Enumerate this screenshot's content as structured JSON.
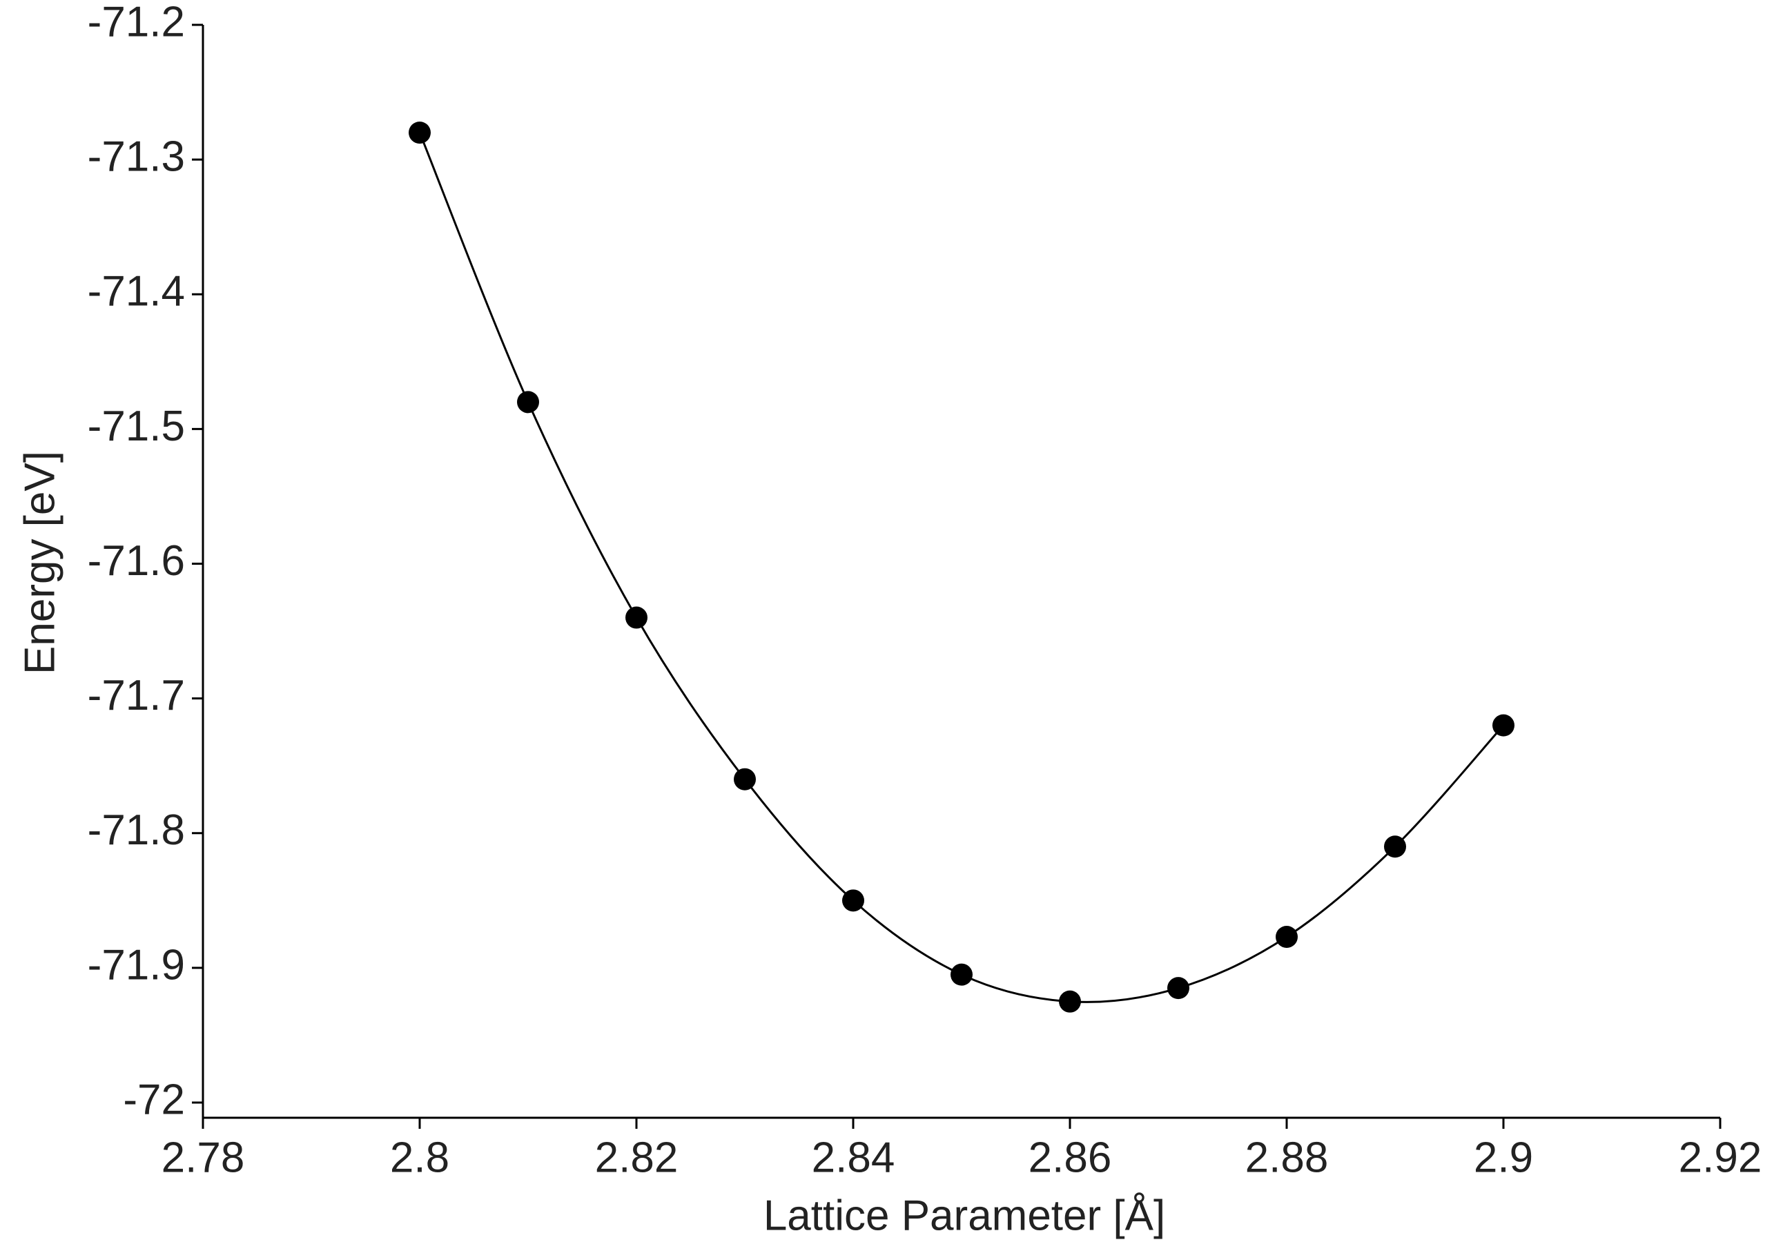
{
  "chart_data": {
    "type": "line",
    "xlabel": "Lattice Parameter [Å]",
    "ylabel": "Energy [eV]",
    "series": [
      {
        "color": "#000000",
        "x": [
          2.8,
          2.81,
          2.82,
          2.83,
          2.84,
          2.85,
          2.86,
          2.87,
          2.88,
          2.89,
          2.9
        ],
        "values": [
          -71.28,
          -71.48,
          -71.64,
          -71.76,
          -71.85,
          -71.905,
          -71.925,
          -71.915,
          -71.877,
          -71.81,
          -71.72
        ]
      }
    ],
    "xlim": [
      2.78,
      2.92
    ],
    "xticks": [
      2.78,
      2.8,
      2.82,
      2.84,
      2.86,
      2.88,
      2.9,
      2.92
    ],
    "ylim": [
      -72,
      -71.2
    ],
    "yticks": [
      -72,
      -71.9,
      -71.8,
      -71.7,
      -71.6,
      -71.5,
      -71.4,
      -71.3,
      -71.2
    ],
    "markers": true,
    "smooth": true,
    "grid": false
  }
}
